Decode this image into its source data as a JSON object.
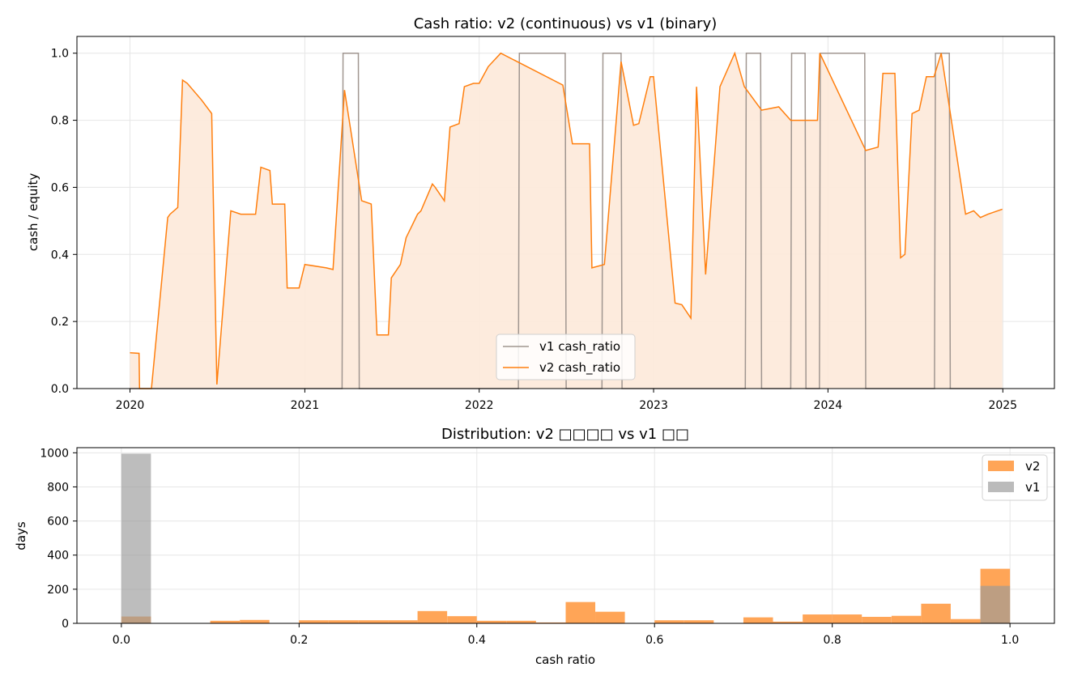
{
  "chart_data": [
    {
      "type": "line",
      "title": "Cash ratio: v2 (continuous) vs v1 (binary)",
      "xlabel": "",
      "ylabel": "cash / equity",
      "xlim": [
        "2019-09-12",
        "2025-04-19"
      ],
      "ylim": [
        0,
        1.05
      ],
      "xticks": [
        "2020",
        "2021",
        "2022",
        "2023",
        "2024",
        "2025"
      ],
      "yticks": [
        "0.0",
        "0.2",
        "0.4",
        "0.6",
        "0.8",
        "1.0"
      ],
      "grid": true,
      "legend_position": "lower-center",
      "colors": {
        "v1": "#a09690",
        "v2": "#ff7f0e",
        "v2_fill": "#fde9d9"
      },
      "series": [
        {
          "name": "v1 cash_ratio",
          "x": [
            "2020-01-01",
            "2021-03-20",
            "2021-03-22",
            "2021-04-23",
            "2021-04-25",
            "2022-03-24",
            "2022-03-26",
            "2022-06-30",
            "2022-07-02",
            "2022-09-15",
            "2022-09-17",
            "2022-10-25",
            "2022-10-27",
            "2023-07-12",
            "2023-07-14",
            "2023-08-13",
            "2023-08-15",
            "2023-10-15",
            "2023-10-17",
            "2023-11-14",
            "2023-11-16",
            "2023-12-14",
            "2023-12-16",
            "2024-03-18",
            "2024-03-20",
            "2024-08-11",
            "2024-08-13",
            "2024-09-11",
            "2024-09-13",
            "2024-12-31"
          ],
          "y": [
            0,
            0,
            1,
            1,
            0,
            0,
            1,
            1,
            0,
            0,
            1,
            1,
            0,
            0,
            1,
            1,
            0,
            0,
            1,
            1,
            0,
            0,
            1,
            1,
            0,
            0,
            1,
            1,
            0,
            0
          ]
        },
        {
          "name": "v2 cash_ratio",
          "x": [
            "2020-01-01",
            "2020-01-20",
            "2020-01-21",
            "2020-02-15",
            "2020-03-20",
            "2020-03-25",
            "2020-04-10",
            "2020-04-20",
            "2020-04-30",
            "2020-05-30",
            "2020-06-20",
            "2020-07-01",
            "2020-07-30",
            "2020-08-20",
            "2020-09-20",
            "2020-10-01",
            "2020-10-20",
            "2020-10-25",
            "2020-11-20",
            "2020-11-25",
            "2020-12-20",
            "2021-01-01",
            "2021-02-15",
            "2021-03-01",
            "2021-03-25",
            "2021-04-30",
            "2021-05-20",
            "2021-06-01",
            "2021-06-25",
            "2021-07-01",
            "2021-07-20",
            "2021-08-01",
            "2021-08-25",
            "2021-09-01",
            "2021-09-25",
            "2021-10-01",
            "2021-10-20",
            "2021-11-01",
            "2021-11-20",
            "2021-12-01",
            "2021-12-20",
            "2022-01-01",
            "2022-01-20",
            "2022-02-15",
            "2022-06-25",
            "2022-07-15",
            "2022-08-20",
            "2022-08-25",
            "2022-09-20",
            "2022-10-25",
            "2022-11-20",
            "2022-12-01",
            "2022-12-25",
            "2023-01-01",
            "2023-02-15",
            "2023-03-01",
            "2023-03-20",
            "2023-04-01",
            "2023-04-20",
            "2023-05-20",
            "2023-06-20",
            "2023-07-10",
            "2023-08-15",
            "2023-09-20",
            "2023-10-15",
            "2023-11-10",
            "2023-12-10",
            "2023-12-15",
            "2024-03-20",
            "2024-04-15",
            "2024-04-25",
            "2024-05-20",
            "2024-06-01",
            "2024-06-10",
            "2024-06-25",
            "2024-07-10",
            "2024-07-25",
            "2024-08-10",
            "2024-08-25",
            "2024-10-15",
            "2024-11-01",
            "2024-11-15",
            "2024-12-01",
            "2024-12-31"
          ],
          "y": [
            0.107,
            0.105,
            0,
            0,
            0.51,
            0.52,
            0.54,
            0.92,
            0.91,
            0.86,
            0.82,
            0.012,
            0.53,
            0.52,
            0.52,
            0.66,
            0.65,
            0.55,
            0.55,
            0.3,
            0.3,
            0.37,
            0.36,
            0.355,
            0.89,
            0.56,
            0.55,
            0.16,
            0.16,
            0.33,
            0.37,
            0.45,
            0.52,
            0.53,
            0.61,
            0.6,
            0.56,
            0.78,
            0.79,
            0.9,
            0.91,
            0.91,
            0.96,
            1.0,
            0.905,
            0.73,
            0.73,
            0.36,
            0.37,
            0.975,
            0.785,
            0.79,
            0.93,
            0.93,
            0.255,
            0.25,
            0.21,
            0.9,
            0.34,
            0.9,
            1.0,
            0.9,
            0.83,
            0.84,
            0.8,
            0.8,
            0.8,
            1.0,
            0.71,
            0.72,
            0.94,
            0.94,
            0.39,
            0.4,
            0.82,
            0.83,
            0.93,
            0.93,
            1.0,
            0.52,
            0.53,
            0.51,
            0.52,
            0.535
          ]
        }
      ]
    },
    {
      "type": "histogram",
      "title": "Distribution: v2 □□□□ vs v1 □□",
      "xlabel": "cash ratio",
      "ylabel": "days",
      "xlim": [
        -0.05,
        1.05
      ],
      "ylim": [
        0,
        1030
      ],
      "xticks": [
        "0.0",
        "0.2",
        "0.4",
        "0.6",
        "0.8",
        "1.0"
      ],
      "yticks": [
        "0",
        "200",
        "400",
        "600",
        "800",
        "1000"
      ],
      "grid": true,
      "legend_position": "top-right",
      "bin_width": 0.0333,
      "colors": {
        "v2": "#ffa557",
        "v1": "#bbbbbb",
        "overlap": "#c8926a"
      },
      "series": [
        {
          "name": "v2",
          "bin_starts": [
            0.0,
            0.1,
            0.1333,
            0.2,
            0.2333,
            0.2667,
            0.3,
            0.3333,
            0.3667,
            0.4,
            0.4333,
            0.4667,
            0.5,
            0.5333,
            0.6,
            0.6333,
            0.7,
            0.7333,
            0.7667,
            0.8,
            0.8333,
            0.8667,
            0.9,
            0.9333,
            0.9667
          ],
          "values": [
            40,
            15,
            20,
            18,
            18,
            18,
            18,
            72,
            42,
            15,
            15,
            5,
            125,
            68,
            18,
            18,
            35,
            10,
            52,
            52,
            38,
            44,
            115,
            25,
            320
          ]
        },
        {
          "name": "v1",
          "bin_starts": [
            0.0,
            0.9667
          ],
          "values": [
            995,
            220
          ]
        }
      ]
    }
  ]
}
